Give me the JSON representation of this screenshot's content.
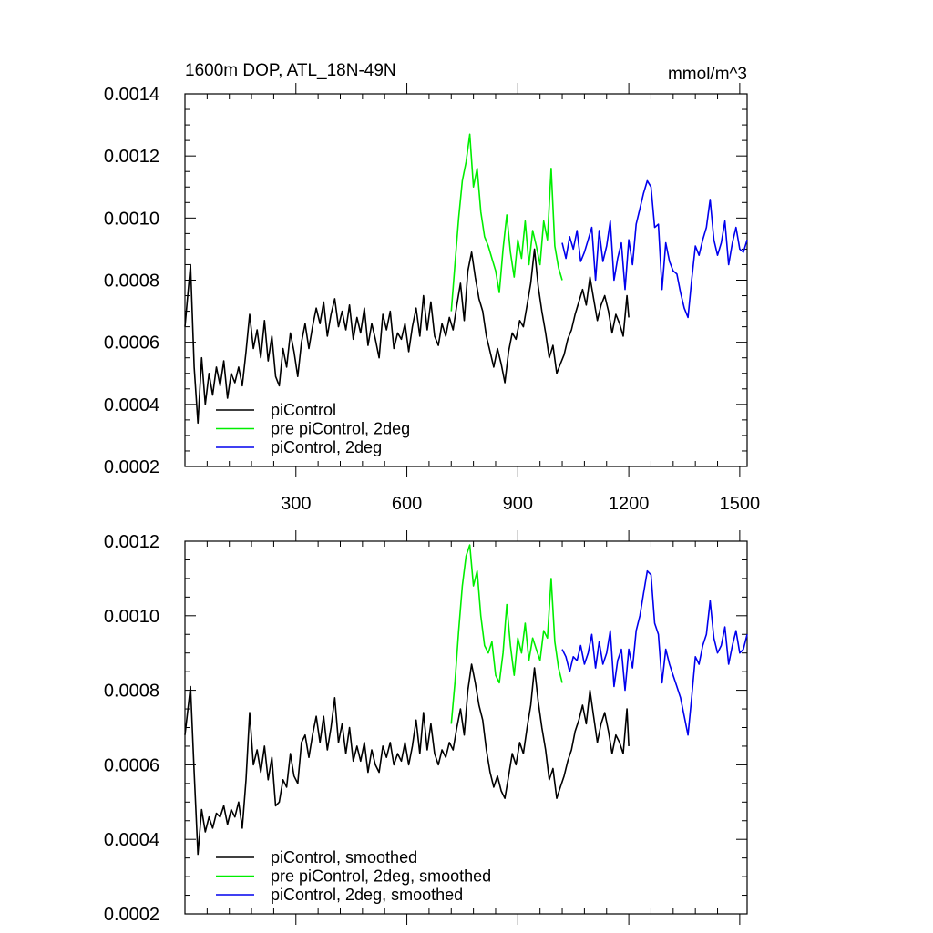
{
  "chart_data": [
    {
      "type": "line",
      "title": "1600m DOP, ATL_18N-49N",
      "units": "mmol/m^3",
      "xlim": [
        0,
        1520
      ],
      "ylim": [
        0.0002,
        0.0014
      ],
      "x_tick_labels": [
        "300",
        "600",
        "900",
        "1200",
        "1500"
      ],
      "x_tick_values": [
        300,
        600,
        900,
        1200,
        1500
      ],
      "y_tick_labels": [
        "0.0002",
        "0.0004",
        "0.0006",
        "0.0008",
        "0.0010",
        "0.0012",
        "0.0014"
      ],
      "y_tick_values": [
        0.0002,
        0.0004,
        0.0006,
        0.0008,
        0.001,
        0.0012,
        0.0014
      ],
      "legend_position": "bottom-left",
      "series": [
        {
          "name": "piControl",
          "color": "#000000",
          "x": [
            0,
            15,
            25,
            35,
            45,
            55,
            65,
            75,
            85,
            95,
            105,
            115,
            125,
            135,
            145,
            155,
            165,
            175,
            185,
            195,
            205,
            215,
            225,
            235,
            245,
            255,
            265,
            275,
            285,
            295,
            305,
            315,
            325,
            335,
            345,
            355,
            365,
            375,
            385,
            395,
            405,
            415,
            425,
            435,
            445,
            455,
            465,
            475,
            485,
            495,
            505,
            515,
            525,
            535,
            545,
            555,
            565,
            575,
            585,
            595,
            605,
            615,
            625,
            635,
            645,
            655,
            665,
            675,
            685,
            695,
            705,
            715,
            725,
            735,
            745,
            755,
            765,
            775,
            785,
            795,
            805,
            815,
            825,
            835,
            845,
            855,
            865,
            875,
            885,
            895,
            905,
            915,
            925,
            935,
            945,
            955,
            965,
            975,
            985,
            995,
            1005,
            1015,
            1025,
            1035,
            1045,
            1055,
            1065,
            1075,
            1085,
            1095,
            1105,
            1115,
            1125,
            1135,
            1145,
            1155,
            1165,
            1175,
            1185,
            1195,
            1200
          ],
          "values": [
            0.00065,
            0.00085,
            0.00052,
            0.00034,
            0.00055,
            0.0004,
            0.0005,
            0.00043,
            0.00052,
            0.00046,
            0.00054,
            0.00042,
            0.0005,
            0.00047,
            0.00052,
            0.00046,
            0.00057,
            0.00069,
            0.00058,
            0.00064,
            0.00055,
            0.00067,
            0.00054,
            0.00062,
            0.00049,
            0.00046,
            0.00058,
            0.00052,
            0.00063,
            0.00057,
            0.00049,
            0.0006,
            0.00066,
            0.00058,
            0.00065,
            0.00071,
            0.00066,
            0.00073,
            0.00062,
            0.00069,
            0.00074,
            0.00065,
            0.0007,
            0.00064,
            0.00072,
            0.00061,
            0.00068,
            0.00063,
            0.00071,
            0.00059,
            0.00066,
            0.00061,
            0.00055,
            0.00069,
            0.00064,
            0.0007,
            0.00058,
            0.00063,
            0.00061,
            0.00066,
            0.00057,
            0.00065,
            0.00071,
            0.00062,
            0.00075,
            0.00064,
            0.00073,
            0.00062,
            0.00059,
            0.00066,
            0.00062,
            0.00068,
            0.00064,
            0.00072,
            0.00079,
            0.00067,
            0.00083,
            0.00089,
            0.00081,
            0.00074,
            0.0007,
            0.00062,
            0.00057,
            0.00052,
            0.00058,
            0.00053,
            0.00047,
            0.00057,
            0.00063,
            0.00061,
            0.00067,
            0.00065,
            0.00072,
            0.00079,
            0.0009,
            0.00078,
            0.0007,
            0.00063,
            0.00055,
            0.00059,
            0.0005,
            0.00053,
            0.00056,
            0.00061,
            0.00064,
            0.00069,
            0.00073,
            0.00077,
            0.00072,
            0.00081,
            0.00074,
            0.00067,
            0.00072,
            0.00075,
            0.0007,
            0.00063,
            0.00069,
            0.00066,
            0.00062,
            0.00075,
            0.00068
          ]
        },
        {
          "name": "pre piControl, 2deg",
          "color": "#00ee00",
          "x": [
            720,
            730,
            740,
            750,
            760,
            770,
            780,
            790,
            800,
            810,
            820,
            830,
            840,
            850,
            860,
            870,
            880,
            890,
            900,
            910,
            920,
            930,
            940,
            950,
            960,
            970,
            980,
            990,
            1000,
            1010,
            1020
          ],
          "values": [
            0.0007,
            0.00085,
            0.001,
            0.00112,
            0.00118,
            0.00127,
            0.0011,
            0.00116,
            0.00102,
            0.00094,
            0.00091,
            0.00087,
            0.00083,
            0.00076,
            0.0009,
            0.00101,
            0.00089,
            0.00081,
            0.00093,
            0.00087,
            0.00099,
            0.00085,
            0.00096,
            0.00091,
            0.00085,
            0.00099,
            0.00093,
            0.00116,
            0.00091,
            0.00084,
            0.0008
          ]
        },
        {
          "name": "piControl, 2deg",
          "color": "#0000ee",
          "x": [
            1020,
            1030,
            1040,
            1050,
            1060,
            1070,
            1080,
            1090,
            1100,
            1110,
            1120,
            1130,
            1140,
            1150,
            1160,
            1170,
            1180,
            1190,
            1200,
            1210,
            1220,
            1230,
            1240,
            1250,
            1260,
            1270,
            1280,
            1290,
            1300,
            1310,
            1320,
            1330,
            1340,
            1350,
            1360,
            1370,
            1380,
            1390,
            1400,
            1410,
            1420,
            1430,
            1440,
            1450,
            1460,
            1470,
            1480,
            1490,
            1500,
            1510,
            1520
          ],
          "values": [
            0.00092,
            0.00087,
            0.00094,
            0.0009,
            0.00096,
            0.00086,
            0.00089,
            0.00093,
            0.00097,
            0.0008,
            0.00096,
            0.00086,
            0.00091,
            0.00099,
            0.0008,
            0.00087,
            0.00092,
            0.00077,
            0.00093,
            0.00085,
            0.00098,
            0.00103,
            0.00108,
            0.00112,
            0.0011,
            0.00097,
            0.00098,
            0.00077,
            0.00092,
            0.00086,
            0.00083,
            0.00082,
            0.00076,
            0.00071,
            0.00068,
            0.0008,
            0.00091,
            0.00088,
            0.00093,
            0.00097,
            0.00106,
            0.00093,
            0.00088,
            0.00092,
            0.00099,
            0.00085,
            0.00092,
            0.00097,
            0.0009,
            0.00089,
            0.00093
          ]
        }
      ]
    },
    {
      "type": "line",
      "title": "",
      "units": "",
      "xlim": [
        0,
        1520
      ],
      "ylim": [
        0.0002,
        0.0012
      ],
      "x_tick_values": [
        300,
        600,
        900,
        1200,
        1500
      ],
      "y_tick_labels": [
        "0.0002",
        "0.0004",
        "0.0006",
        "0.0008",
        "0.0010",
        "0.0012"
      ],
      "y_tick_values": [
        0.0002,
        0.0004,
        0.0006,
        0.0008,
        0.001,
        0.0012
      ],
      "legend_position": "bottom-left",
      "series": [
        {
          "name": "piControl, smoothed",
          "color": "#000000",
          "x": [
            0,
            15,
            25,
            35,
            45,
            55,
            65,
            75,
            85,
            95,
            105,
            115,
            125,
            135,
            145,
            155,
            165,
            175,
            185,
            195,
            205,
            215,
            225,
            235,
            245,
            255,
            265,
            275,
            285,
            295,
            305,
            315,
            325,
            335,
            345,
            355,
            365,
            375,
            385,
            395,
            405,
            415,
            425,
            435,
            445,
            455,
            465,
            475,
            485,
            495,
            505,
            515,
            525,
            535,
            545,
            555,
            565,
            575,
            585,
            595,
            605,
            615,
            625,
            635,
            645,
            655,
            665,
            675,
            685,
            695,
            705,
            715,
            725,
            735,
            745,
            755,
            765,
            775,
            785,
            795,
            805,
            815,
            825,
            835,
            845,
            855,
            865,
            875,
            885,
            895,
            905,
            915,
            925,
            935,
            945,
            955,
            965,
            975,
            985,
            995,
            1005,
            1015,
            1025,
            1035,
            1045,
            1055,
            1065,
            1075,
            1085,
            1095,
            1105,
            1115,
            1125,
            1135,
            1145,
            1155,
            1165,
            1175,
            1185,
            1195,
            1200
          ],
          "values": [
            0.00068,
            0.00081,
            0.00058,
            0.00036,
            0.00048,
            0.00042,
            0.00046,
            0.00043,
            0.00047,
            0.00046,
            0.00049,
            0.00044,
            0.00048,
            0.00046,
            0.0005,
            0.00043,
            0.00056,
            0.00074,
            0.0006,
            0.00064,
            0.00058,
            0.00065,
            0.00056,
            0.00062,
            0.00049,
            0.0005,
            0.00056,
            0.00054,
            0.00063,
            0.00057,
            0.00055,
            0.00066,
            0.00068,
            0.00062,
            0.00068,
            0.00073,
            0.00066,
            0.00073,
            0.00064,
            0.0007,
            0.00078,
            0.00066,
            0.00071,
            0.00063,
            0.0007,
            0.00061,
            0.00065,
            0.00061,
            0.00066,
            0.00058,
            0.00064,
            0.0006,
            0.00058,
            0.00065,
            0.00062,
            0.00066,
            0.0006,
            0.00063,
            0.00061,
            0.00066,
            0.0006,
            0.00065,
            0.00072,
            0.00063,
            0.00074,
            0.00064,
            0.00071,
            0.00063,
            0.0006,
            0.00064,
            0.00062,
            0.00066,
            0.00064,
            0.0007,
            0.00075,
            0.00068,
            0.0008,
            0.00087,
            0.00082,
            0.00076,
            0.00072,
            0.00064,
            0.00058,
            0.00054,
            0.00057,
            0.00053,
            0.00051,
            0.00057,
            0.00063,
            0.0006,
            0.00066,
            0.00063,
            0.0007,
            0.00076,
            0.00086,
            0.00077,
            0.0007,
            0.00064,
            0.00056,
            0.00059,
            0.00051,
            0.00054,
            0.00057,
            0.00061,
            0.00064,
            0.00069,
            0.00072,
            0.00076,
            0.00071,
            0.0008,
            0.00073,
            0.00066,
            0.00071,
            0.00074,
            0.00069,
            0.00063,
            0.00068,
            0.00066,
            0.00063,
            0.00075,
            0.00065
          ]
        },
        {
          "name": "pre piControl, 2deg, smoothed",
          "color": "#00ee00",
          "x": [
            720,
            730,
            740,
            750,
            760,
            770,
            780,
            790,
            800,
            810,
            820,
            830,
            840,
            850,
            860,
            870,
            880,
            890,
            900,
            910,
            920,
            930,
            940,
            950,
            960,
            970,
            980,
            990,
            1000,
            1010,
            1020
          ],
          "values": [
            0.00071,
            0.00082,
            0.00096,
            0.00108,
            0.00116,
            0.00119,
            0.00108,
            0.00112,
            0.001,
            0.00092,
            0.0009,
            0.00093,
            0.00084,
            0.00082,
            0.0009,
            0.00103,
            0.00092,
            0.00084,
            0.00094,
            0.0009,
            0.00098,
            0.00088,
            0.00094,
            0.00091,
            0.00088,
            0.00096,
            0.00094,
            0.0011,
            0.00093,
            0.00086,
            0.00082
          ]
        },
        {
          "name": "piControl, 2deg, smoothed",
          "color": "#0000ee",
          "x": [
            1020,
            1030,
            1040,
            1050,
            1060,
            1070,
            1080,
            1090,
            1100,
            1110,
            1120,
            1130,
            1140,
            1150,
            1160,
            1170,
            1180,
            1190,
            1200,
            1210,
            1220,
            1230,
            1240,
            1250,
            1260,
            1270,
            1280,
            1290,
            1300,
            1310,
            1320,
            1330,
            1340,
            1350,
            1360,
            1370,
            1380,
            1390,
            1400,
            1410,
            1420,
            1430,
            1440,
            1450,
            1460,
            1470,
            1480,
            1490,
            1500,
            1510,
            1520
          ],
          "values": [
            0.00091,
            0.00089,
            0.00085,
            0.00089,
            0.00088,
            0.00092,
            0.00087,
            0.0009,
            0.00095,
            0.00086,
            0.00093,
            0.00087,
            0.0009,
            0.00096,
            0.00081,
            0.00088,
            0.00091,
            0.0008,
            0.00091,
            0.00086,
            0.00096,
            0.001,
            0.00106,
            0.00112,
            0.00111,
            0.00098,
            0.00095,
            0.00082,
            0.00091,
            0.00087,
            0.00084,
            0.00081,
            0.00078,
            0.00073,
            0.00068,
            0.00078,
            0.00089,
            0.00087,
            0.00092,
            0.00095,
            0.00104,
            0.00094,
            0.0009,
            0.00092,
            0.00097,
            0.00087,
            0.00092,
            0.00096,
            0.0009,
            0.00091,
            0.00095
          ]
        }
      ]
    }
  ]
}
